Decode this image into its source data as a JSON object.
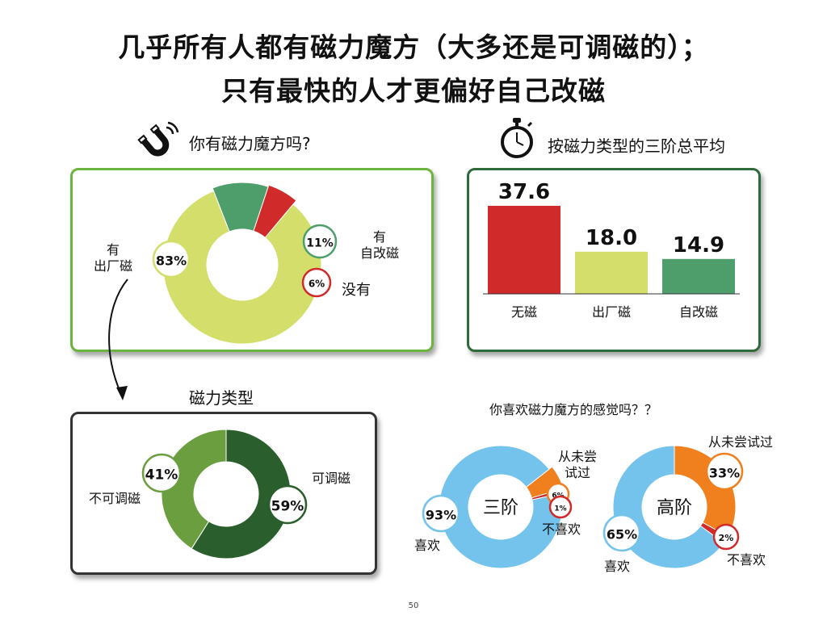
{
  "title": {
    "line1": "几乎所有人都有磁力魔方（大多还是可调磁的）；",
    "line2": "只有最快的人才更偏好自己改磁"
  },
  "page_number": "50",
  "icons": [
    "magnet-icon",
    "stopwatch-icon"
  ],
  "colors": {
    "yellow_green": "#d3df6a",
    "teal_green": "#4e9e6c",
    "red": "#d12a2a",
    "dark_green": "#2a5e2c",
    "mid_green": "#6b9e3f",
    "sky_blue": "#73c3ec",
    "orange": "#f07f1e",
    "panel_border_light": "#6db33f",
    "panel_border_dark": "#2e6a3a",
    "panel_border_darkest": "#333333"
  },
  "sections": {
    "own": {
      "title": "你有磁力魔方吗?"
    },
    "avg": {
      "title": "按磁力类型的三阶总平均"
    },
    "type": {
      "title": "磁力类型"
    },
    "feel": {
      "title": "你喜欢磁力魔方的感觉吗？？"
    }
  },
  "chart_data": [
    {
      "type": "pie",
      "id": "own",
      "donut": true,
      "slices": [
        {
          "label_lines": [
            "有",
            "出厂磁"
          ],
          "value": 83,
          "badge": "83%",
          "color": "#d3df6a"
        },
        {
          "label_lines": [
            "有",
            "自改磁"
          ],
          "value": 11,
          "badge": "11%",
          "color": "#4e9e6c"
        },
        {
          "label_lines": [
            "没有"
          ],
          "value": 6,
          "badge": "6%",
          "color": "#d12a2a"
        }
      ]
    },
    {
      "type": "bar",
      "id": "avg",
      "categories": [
        "无磁",
        "出厂磁",
        "自改磁"
      ],
      "values": [
        37.6,
        18.0,
        14.9
      ],
      "value_labels": [
        "37.6",
        "18.0",
        "14.9"
      ],
      "colors": [
        "#d12a2a",
        "#d3df6a",
        "#4e9e6c"
      ],
      "ylim": [
        0,
        40
      ],
      "grid": false
    },
    {
      "type": "pie",
      "id": "type",
      "donut": true,
      "slices": [
        {
          "label_lines": [
            "可调磁"
          ],
          "value": 59,
          "badge": "59%",
          "color": "#2a5e2c"
        },
        {
          "label_lines": [
            "不可调磁"
          ],
          "value": 41,
          "badge": "41%",
          "color": "#6b9e3f"
        }
      ]
    },
    {
      "type": "pie",
      "id": "feel3",
      "donut": true,
      "center_label": "三阶",
      "slices": [
        {
          "label_lines": [
            "从未尝",
            "试过"
          ],
          "value": 6,
          "badge": "6%",
          "color": "#f07f1e"
        },
        {
          "label_lines": [
            "不喜欢"
          ],
          "value": 1,
          "badge": "1%",
          "color": "#d12a2a"
        },
        {
          "label_lines": [
            "喜欢"
          ],
          "value": 93,
          "badge": "93%",
          "color": "#73c3ec"
        }
      ]
    },
    {
      "type": "pie",
      "id": "feelH",
      "donut": true,
      "center_label": "高阶",
      "slices": [
        {
          "label_lines": [
            "从未尝试过"
          ],
          "value": 33,
          "badge": "33%",
          "color": "#f07f1e"
        },
        {
          "label_lines": [
            "不喜欢"
          ],
          "value": 2,
          "badge": "2%",
          "color": "#d12a2a"
        },
        {
          "label_lines": [
            "喜欢"
          ],
          "value": 65,
          "badge": "65%",
          "color": "#73c3ec"
        }
      ]
    }
  ]
}
